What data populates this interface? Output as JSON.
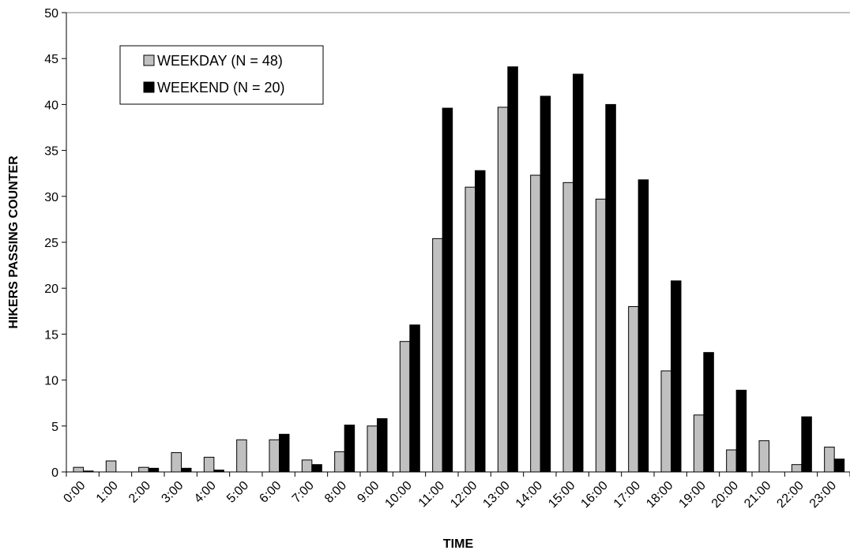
{
  "chart_data": {
    "type": "bar",
    "title": "",
    "xlabel": "TIME",
    "ylabel": "HIKERS PASSING COUNTER",
    "ylim": [
      0,
      50
    ],
    "yticks": [
      0,
      5,
      10,
      15,
      20,
      25,
      30,
      35,
      40,
      45,
      50
    ],
    "grid": false,
    "legend_position": "top-left",
    "categories": [
      "0:00",
      "1:00",
      "2:00",
      "3:00",
      "4:00",
      "5:00",
      "6:00",
      "7:00",
      "8:00",
      "9:00",
      "10:00",
      "11:00",
      "12:00",
      "13:00",
      "14:00",
      "15:00",
      "16:00",
      "17:00",
      "18:00",
      "19:00",
      "20:00",
      "21:00",
      "22:00",
      "23:00"
    ],
    "series": [
      {
        "name": "WEEKDAY (N = 48)",
        "color": "#c0c0c0",
        "values": [
          0.5,
          1.2,
          0.5,
          2.1,
          1.6,
          3.5,
          3.5,
          1.3,
          2.2,
          5.0,
          14.2,
          25.4,
          31.0,
          39.7,
          32.3,
          31.5,
          29.7,
          18.0,
          11.0,
          6.2,
          2.4,
          3.4,
          0.8,
          2.7
        ]
      },
      {
        "name": "WEEKEND (N = 20)",
        "color": "#000000",
        "values": [
          0.1,
          0,
          0.4,
          0.4,
          0.2,
          0,
          4.1,
          0.8,
          5.1,
          5.8,
          16.0,
          39.6,
          32.8,
          44.1,
          40.9,
          43.3,
          40.0,
          31.8,
          20.8,
          13.0,
          8.9,
          0,
          6.0,
          1.4
        ]
      }
    ]
  }
}
